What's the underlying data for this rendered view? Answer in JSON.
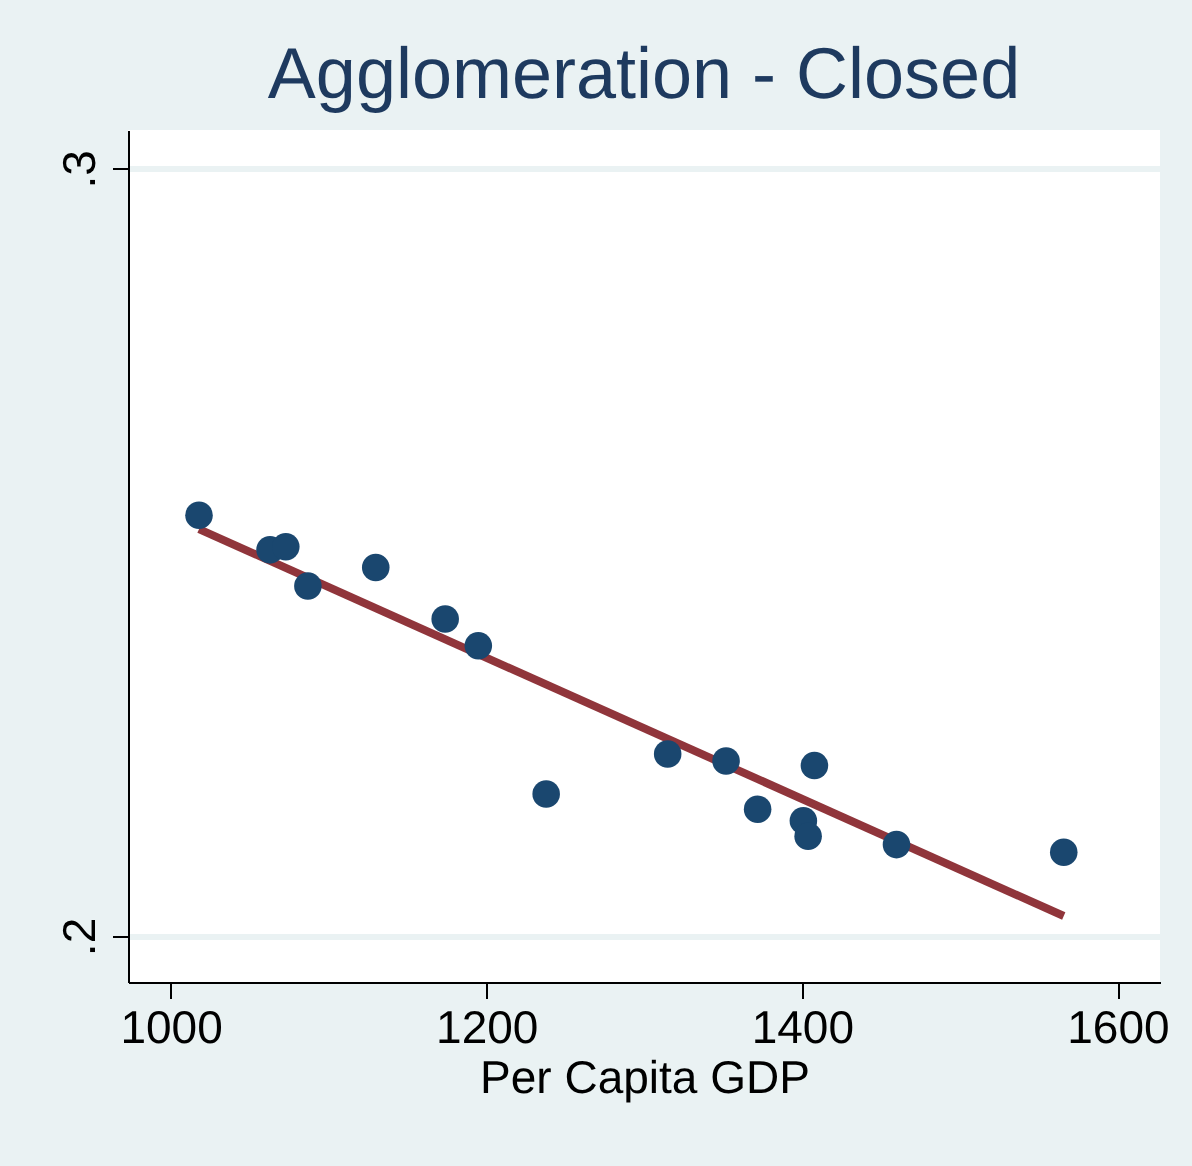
{
  "chart_data": {
    "type": "scatter",
    "title": "Agglomeration - Closed",
    "xlabel": "Per Capita GDP",
    "series": [
      {
        "color": "#1a476f",
        "marker": "circle",
        "x": [
          1018,
          1063,
          1073,
          1087,
          1130,
          1174,
          1195,
          1238,
          1315,
          1352,
          1408,
          1372,
          1401,
          1404,
          1460,
          1566
        ],
        "values": [
          0.2548,
          0.2503,
          0.2507,
          0.2456,
          0.248,
          0.2413,
          0.2378,
          0.2185,
          0.2237,
          0.2228,
          0.2222,
          0.2165,
          0.215,
          0.213,
          0.2119,
          0.2109
        ]
      },
      {
        "type": "line",
        "color": "#90353b",
        "line_style": "solid",
        "x": [
          1018,
          1566
        ],
        "values": [
          0.253,
          0.2026
        ]
      }
    ],
    "xlim": [
      973,
      1627
    ],
    "ylim": [
      0.194,
      0.305
    ],
    "xticks": [
      1000,
      1200,
      1400,
      1600
    ],
    "yticks": [
      {
        "value": 0.2,
        "label": ".2"
      },
      {
        "value": 0.3,
        "label": ".3"
      }
    ],
    "grid": "y"
  }
}
